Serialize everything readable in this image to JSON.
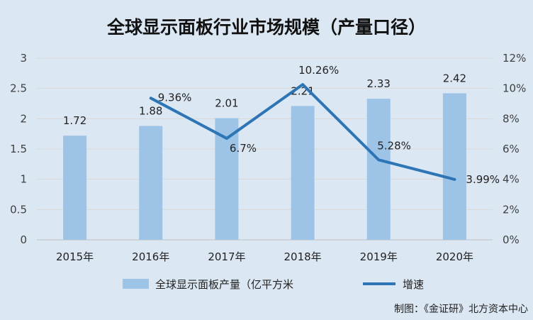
{
  "chart_data": {
    "type": "bar",
    "title": "全球显示面板行业市场规模（产量口径）",
    "categories": [
      "2015年",
      "2016年",
      "2017年",
      "2018年",
      "2019年",
      "2020年"
    ],
    "series": [
      {
        "name": "全球显示面板产量（亿平方米",
        "type": "bar",
        "axis": "left",
        "color": "#9dc3e6",
        "values": [
          1.72,
          1.88,
          2.01,
          2.21,
          2.33,
          2.42
        ],
        "labels": [
          "1.72",
          "1.88",
          "2.01",
          "2.21",
          "2.33",
          "2.42"
        ]
      },
      {
        "name": "增速",
        "type": "line",
        "axis": "right",
        "color": "#2e75b6",
        "values": [
          null,
          9.36,
          6.7,
          10.26,
          5.28,
          3.99
        ],
        "labels": [
          "",
          "9.36%",
          "6.7%",
          "10.26%",
          "5.28%",
          "3.99%"
        ]
      }
    ],
    "y_left": {
      "min": 0,
      "max": 3,
      "ticks": [
        "0",
        "0.5",
        "1",
        "1.5",
        "2",
        "2.5",
        "3"
      ],
      "tick_values": [
        0,
        0.5,
        1,
        1.5,
        2,
        2.5,
        3
      ]
    },
    "y_right": {
      "min": 0,
      "max": 12,
      "ticks": [
        "0%",
        "2%",
        "4%",
        "6%",
        "8%",
        "10%",
        "12%"
      ],
      "tick_values": [
        0,
        2,
        4,
        6,
        8,
        10,
        12
      ]
    },
    "grid": true,
    "legend": "bottom-center",
    "credit": "制图：《金证研》北方资本中心"
  }
}
